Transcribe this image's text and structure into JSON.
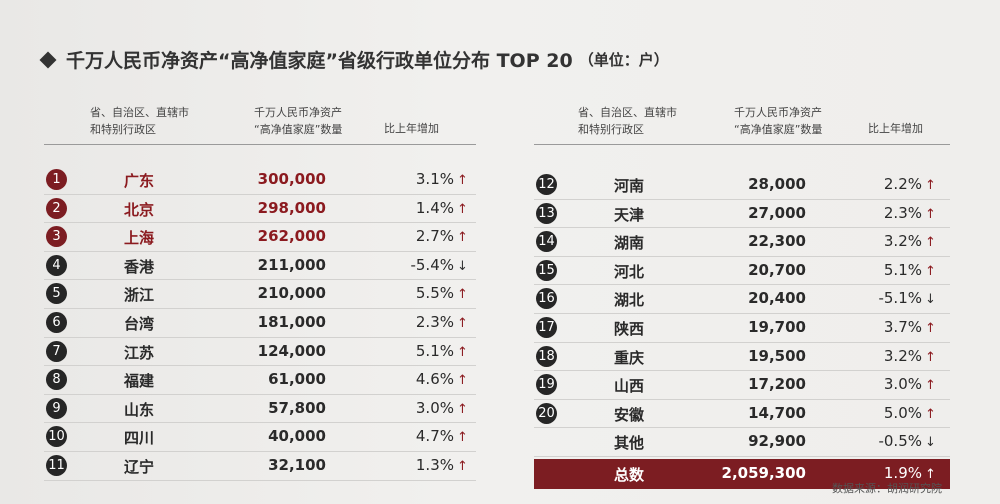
{
  "title": "千万人民币净资产“高净值家庭”省级行政单位分布 TOP 20",
  "unit": "（单位：户）",
  "headers": {
    "region": "省、自治区、直辖市和特别行政区",
    "region_line1": "省、自治区、直辖市",
    "region_line2": "和特别行政区",
    "count_line1": "千万人民币净资产",
    "count_line2": "“高净值家庭”数量",
    "change": "比上年增加"
  },
  "left_rows": [
    {
      "rank": "1",
      "region": "广东",
      "count": "300,000",
      "change": "3.1%",
      "dir": "up",
      "hl": true
    },
    {
      "rank": "2",
      "region": "北京",
      "count": "298,000",
      "change": "1.4%",
      "dir": "up",
      "hl": true
    },
    {
      "rank": "3",
      "region": "上海",
      "count": "262,000",
      "change": "2.7%",
      "dir": "up",
      "hl": true
    },
    {
      "rank": "4",
      "region": "香港",
      "count": "211,000",
      "change": "-5.4%",
      "dir": "down",
      "hl": false
    },
    {
      "rank": "5",
      "region": "浙江",
      "count": "210,000",
      "change": "5.5%",
      "dir": "up",
      "hl": false
    },
    {
      "rank": "6",
      "region": "台湾",
      "count": "181,000",
      "change": "2.3%",
      "dir": "up",
      "hl": false
    },
    {
      "rank": "7",
      "region": "江苏",
      "count": "124,000",
      "change": "5.1%",
      "dir": "up",
      "hl": false
    },
    {
      "rank": "8",
      "region": "福建",
      "count": "61,000",
      "change": "4.6%",
      "dir": "up",
      "hl": false
    },
    {
      "rank": "9",
      "region": "山东",
      "count": "57,800",
      "change": "3.0%",
      "dir": "up",
      "hl": false
    },
    {
      "rank": "10",
      "region": "四川",
      "count": "40,000",
      "change": "4.7%",
      "dir": "up",
      "hl": false
    },
    {
      "rank": "11",
      "region": "辽宁",
      "count": "32,100",
      "change": "1.3%",
      "dir": "up",
      "hl": false
    }
  ],
  "right_rows": [
    {
      "rank": "12",
      "region": "河南",
      "count": "28,000",
      "change": "2.2%",
      "dir": "up"
    },
    {
      "rank": "13",
      "region": "天津",
      "count": "27,000",
      "change": "2.3%",
      "dir": "up"
    },
    {
      "rank": "14",
      "region": "湖南",
      "count": "22,300",
      "change": "3.2%",
      "dir": "up"
    },
    {
      "rank": "15",
      "region": "河北",
      "count": "20,700",
      "change": "5.1%",
      "dir": "up"
    },
    {
      "rank": "16",
      "region": "湖北",
      "count": "20,400",
      "change": "-5.1%",
      "dir": "down"
    },
    {
      "rank": "17",
      "region": "陕西",
      "count": "19,700",
      "change": "3.7%",
      "dir": "up"
    },
    {
      "rank": "18",
      "region": "重庆",
      "count": "19,500",
      "change": "3.2%",
      "dir": "up"
    },
    {
      "rank": "19",
      "region": "山西",
      "count": "17,200",
      "change": "3.0%",
      "dir": "up"
    },
    {
      "rank": "20",
      "region": "安徽",
      "count": "14,700",
      "change": "5.0%",
      "dir": "up"
    },
    {
      "rank": "",
      "region": "其他",
      "count": "92,900",
      "change": "-0.5%",
      "dir": "down"
    }
  ],
  "total": {
    "region": "总数",
    "count": "2,059,300",
    "change": "1.9%",
    "dir": "up"
  },
  "source": "数据来源：胡润研究院",
  "colors": {
    "accent": "#7c1d22",
    "rank_dark": "#262626",
    "text": "#2a2a2a"
  }
}
